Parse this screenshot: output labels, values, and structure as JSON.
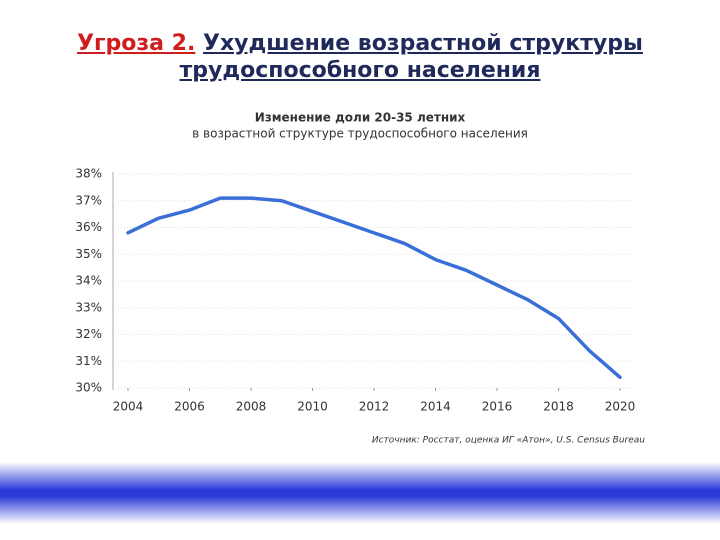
{
  "slide": {
    "title_prefix": "Угроза 2.",
    "title_line1": "Ухудшение возрастной структуры",
    "title_line2": "трудоспособного населения",
    "source": "Источник: Росстат, оценка ИГ «Атон», U.S. Census Bureau"
  },
  "chart_data": {
    "type": "line",
    "title": "Изменение доли 20-35 летних",
    "subtitle": "в возрастной структуре трудоспособного населения",
    "x": [
      2004,
      2005,
      2006,
      2007,
      2008,
      2009,
      2010,
      2011,
      2012,
      2013,
      2014,
      2015,
      2016,
      2017,
      2018,
      2019,
      2020
    ],
    "series": [
      {
        "color": "#3a6fd8",
        "values": [
          35.8,
          36.35,
          36.65,
          37.1,
          37.1,
          37.0,
          36.6,
          36.2,
          35.8,
          35.4,
          34.8,
          34.4,
          33.85,
          33.3,
          32.6,
          31.4,
          30.4
        ]
      }
    ],
    "xlim": [
      2004,
      2020
    ],
    "xticks": [
      2004,
      2006,
      2008,
      2010,
      2012,
      2014,
      2016,
      2018,
      2020
    ],
    "ylim": [
      30,
      38
    ],
    "yticks": [
      {
        "value": 30,
        "label": "30%"
      },
      {
        "value": 31,
        "label": "31%"
      },
      {
        "value": 32,
        "label": "32%"
      },
      {
        "value": 33,
        "label": "33%"
      },
      {
        "value": 34,
        "label": "34%"
      },
      {
        "value": 35,
        "label": "35%"
      },
      {
        "value": 36,
        "label": "36%"
      },
      {
        "value": 37,
        "label": "37%"
      },
      {
        "value": 38,
        "label": "38%"
      }
    ],
    "grid": true
  }
}
